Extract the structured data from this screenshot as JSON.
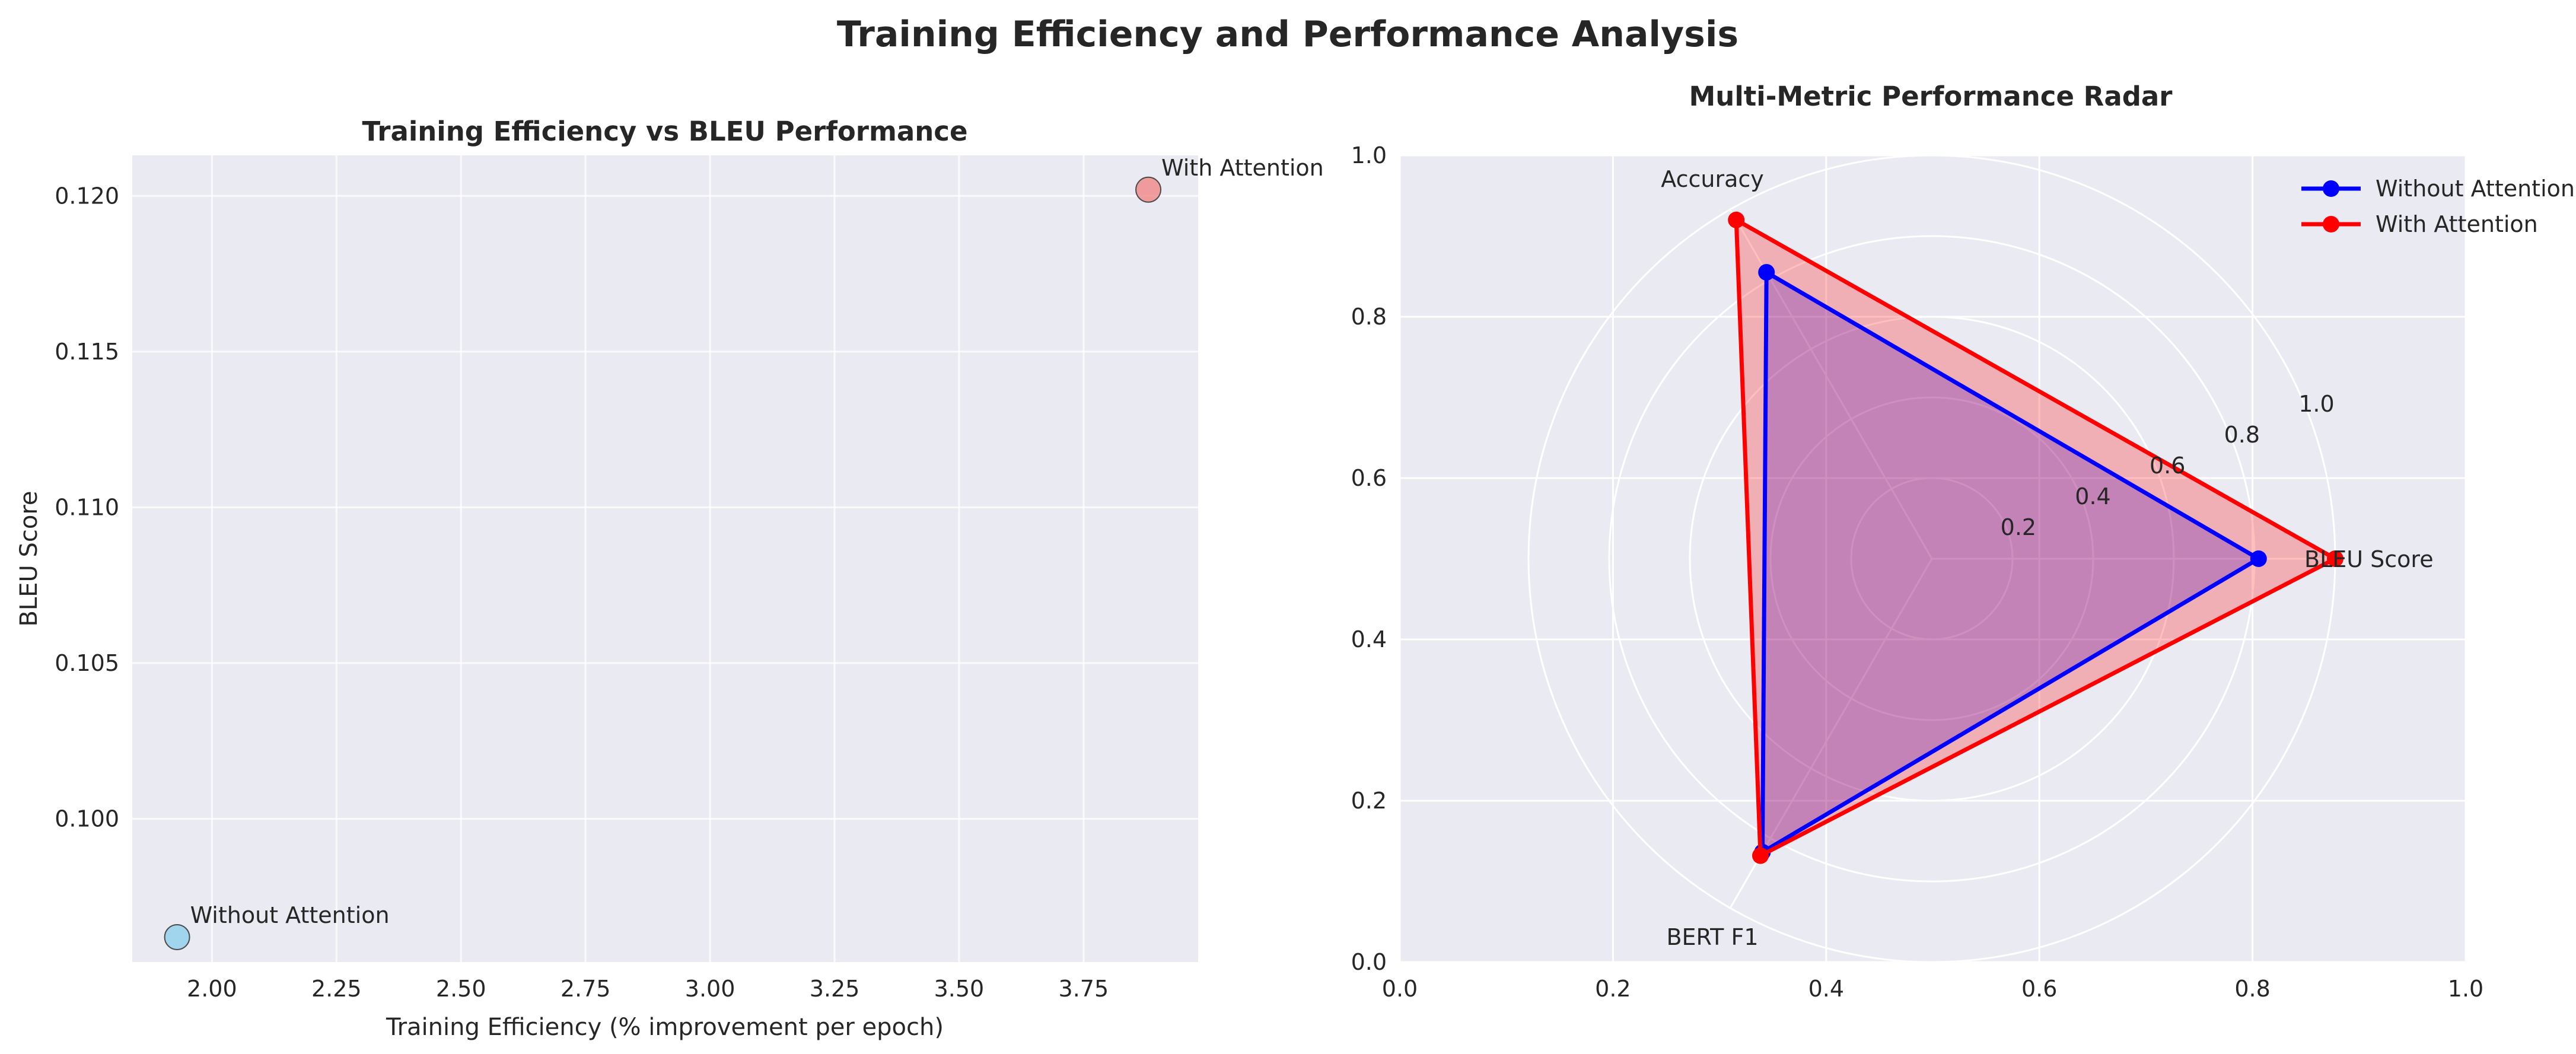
{
  "figure": {
    "title": "Training Efficiency and Performance Analysis"
  },
  "chart_data": [
    {
      "type": "scatter",
      "title": "Training Efficiency vs BLEU Performance",
      "xlabel": "Training Efficiency (% improvement per epoch)",
      "ylabel": "BLEU Score",
      "xlim": [
        1.84,
        3.98
      ],
      "ylim": [
        0.0954,
        0.1213
      ],
      "xticks": [
        "2.00",
        "2.25",
        "2.50",
        "2.75",
        "3.00",
        "3.25",
        "3.50",
        "3.75"
      ],
      "yticks": [
        "0.100",
        "0.105",
        "0.110",
        "0.115",
        "0.120"
      ],
      "grid": true,
      "points": [
        {
          "name": "Without Attention",
          "x": 1.93,
          "y": 0.0962,
          "color": "#87ceeb"
        },
        {
          "name": "With Attention",
          "x": 3.88,
          "y": 0.1202,
          "color": "#f08080"
        }
      ]
    },
    {
      "type": "radar",
      "title": "Multi-Metric Performance Radar",
      "axes": [
        "BLEU Score",
        "Accuracy",
        "BERT F1"
      ],
      "rlim": [
        0,
        1.0
      ],
      "rticks": [
        "0.2",
        "0.4",
        "0.6",
        "0.8",
        "1.0"
      ],
      "frame_xticks": [
        "0.0",
        "0.2",
        "0.4",
        "0.6",
        "0.8",
        "1.0"
      ],
      "frame_yticks": [
        "0.0",
        "0.2",
        "0.4",
        "0.6",
        "0.8",
        "1.0"
      ],
      "legend_position": "top-right",
      "series": [
        {
          "name": "Without Attention",
          "values": [
            0.81,
            0.82,
            0.84
          ],
          "color": "#0000ff"
        },
        {
          "name": "With Attention",
          "values": [
            1.0,
            0.97,
            0.85
          ],
          "color": "#ff0000"
        }
      ]
    }
  ]
}
